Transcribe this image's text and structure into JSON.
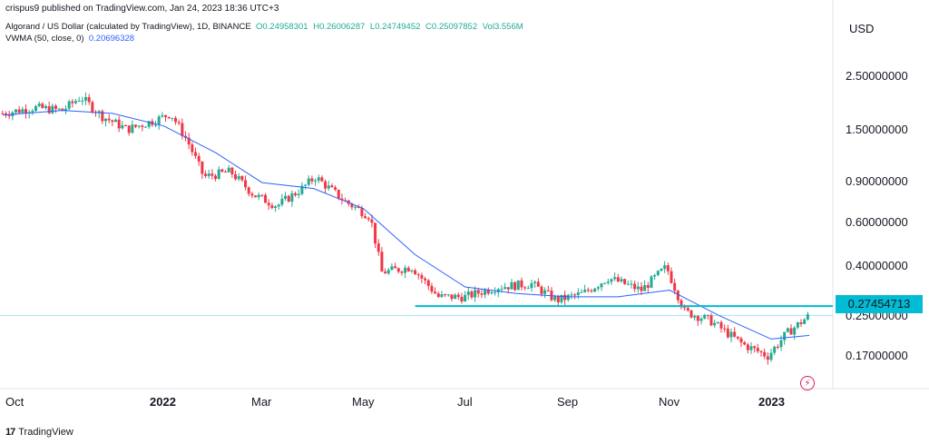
{
  "attribution": "crispus9 published on TradingView.com, Jan 24, 2023 18:36 UTC+3",
  "legend": {
    "symbol": "Algorand / US Dollar (calculated by TradingView), 1D, BINANCE",
    "open": "O0.24958301",
    "high": "H0.26006287",
    "low": "L0.24749452",
    "close": "C0.25097852",
    "volume": "Vol3.556M",
    "vwma_label": "VWMA (50, close, 0)",
    "vwma_value": "0.20696328"
  },
  "currency": "USD",
  "footer_brand": "TradingView",
  "colors": {
    "up": "#22ab94",
    "down": "#f23645",
    "vwma": "#2962ff",
    "support": "#00bcd4"
  },
  "chart_data": {
    "type": "candlestick",
    "y_scale": "log",
    "y_ticks": [
      "2.50000000",
      "1.50000000",
      "0.90000000",
      "0.60000000",
      "0.40000000",
      "0.25000000",
      "0.17000000"
    ],
    "x_ticks": [
      "Oct",
      "2022",
      "Mar",
      "May",
      "Jul",
      "Sep",
      "Nov",
      "2023"
    ],
    "current_price": "0.27454713",
    "last_ohlc": {
      "open": 0.24958301,
      "high": 0.26006287,
      "low": 0.24749452,
      "close": 0.25097852
    },
    "support_level": 0.2745,
    "series": [
      {
        "name": "ALGO/USD close",
        "points": [
          [
            "2021-09-26",
            1.75
          ],
          [
            "2021-10-15",
            1.85
          ],
          [
            "2021-11-01",
            1.8
          ],
          [
            "2021-11-12",
            2.05
          ],
          [
            "2021-11-25",
            1.7
          ],
          [
            "2021-12-10",
            1.5
          ],
          [
            "2021-12-28",
            1.65
          ],
          [
            "2022-01-05",
            1.75
          ],
          [
            "2022-01-15",
            1.35
          ],
          [
            "2022-01-25",
            0.95
          ],
          [
            "2022-02-10",
            1.0
          ],
          [
            "2022-02-24",
            0.8
          ],
          [
            "2022-03-10",
            0.72
          ],
          [
            "2022-03-25",
            0.85
          ],
          [
            "2022-04-02",
            0.95
          ],
          [
            "2022-04-20",
            0.75
          ],
          [
            "2022-05-05",
            0.65
          ],
          [
            "2022-05-12",
            0.38
          ],
          [
            "2022-05-30",
            0.4
          ],
          [
            "2022-06-15",
            0.3
          ],
          [
            "2022-07-01",
            0.3
          ],
          [
            "2022-07-20",
            0.33
          ],
          [
            "2022-08-10",
            0.34
          ],
          [
            "2022-08-25",
            0.29
          ],
          [
            "2022-09-10",
            0.31
          ],
          [
            "2022-09-25",
            0.36
          ],
          [
            "2022-10-15",
            0.32
          ],
          [
            "2022-10-30",
            0.4
          ],
          [
            "2022-11-10",
            0.26
          ],
          [
            "2022-11-25",
            0.24
          ],
          [
            "2022-12-15",
            0.19
          ],
          [
            "2022-12-30",
            0.17
          ],
          [
            "2023-01-10",
            0.21
          ],
          [
            "2023-01-24",
            0.251
          ]
        ]
      },
      {
        "name": "VWMA (50, close, 0)",
        "points": [
          [
            "2021-09-26",
            1.72
          ],
          [
            "2021-11-01",
            1.8
          ],
          [
            "2021-12-01",
            1.75
          ],
          [
            "2022-01-01",
            1.55
          ],
          [
            "2022-02-01",
            1.2
          ],
          [
            "2022-03-01",
            0.9
          ],
          [
            "2022-04-01",
            0.85
          ],
          [
            "2022-05-01",
            0.7
          ],
          [
            "2022-06-01",
            0.45
          ],
          [
            "2022-07-01",
            0.33
          ],
          [
            "2022-08-01",
            0.31
          ],
          [
            "2022-09-01",
            0.3
          ],
          [
            "2022-10-01",
            0.3
          ],
          [
            "2022-11-01",
            0.32
          ],
          [
            "2022-12-01",
            0.25
          ],
          [
            "2023-01-01",
            0.2
          ],
          [
            "2023-01-24",
            0.207
          ]
        ]
      }
    ]
  }
}
